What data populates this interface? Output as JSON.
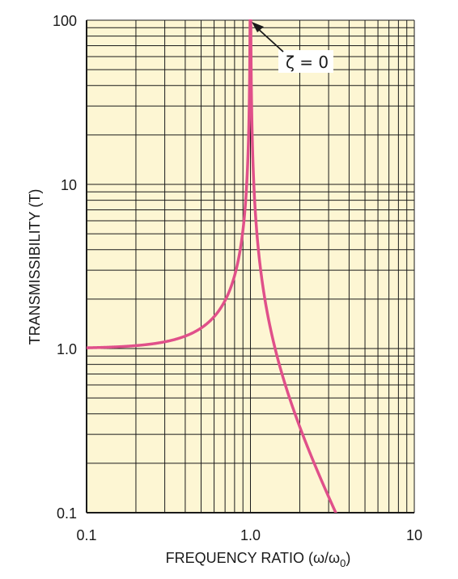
{
  "chart_data": {
    "type": "line",
    "title": "",
    "xlabel": "FREQUENCY RATIO (ω/ω",
    "xlabel_subscript": "0",
    "xlabel_close": ")",
    "ylabel": "TRANSMISSIBILITY (T)",
    "x_scale": "log",
    "y_scale": "log",
    "xlim": [
      0.1,
      10
    ],
    "ylim": [
      0.1,
      100
    ],
    "x_ticks": [
      {
        "value": 0.1,
        "label": "0.1"
      },
      {
        "value": 1,
        "label": "1.0"
      },
      {
        "value": 10,
        "label": "10"
      }
    ],
    "y_ticks": [
      {
        "value": 0.1,
        "label": "0.1"
      },
      {
        "value": 1,
        "label": "1.0"
      },
      {
        "value": 10,
        "label": "10"
      },
      {
        "value": 100,
        "label": "100"
      }
    ],
    "grid": true,
    "series": [
      {
        "name": "",
        "color": "#e0508a",
        "formula": "T = 1 / |1 - r^2|",
        "damping_ratio": 0,
        "x_range": [
          0.1,
          3.9
        ]
      }
    ],
    "annotations": [
      {
        "text": "ζ = 0",
        "points_to": {
          "x": 1.0,
          "y": 100
        }
      }
    ],
    "colors": {
      "background": "#fdf6d3",
      "grid": "#1a1a1a",
      "curve": "#e0508a"
    }
  }
}
